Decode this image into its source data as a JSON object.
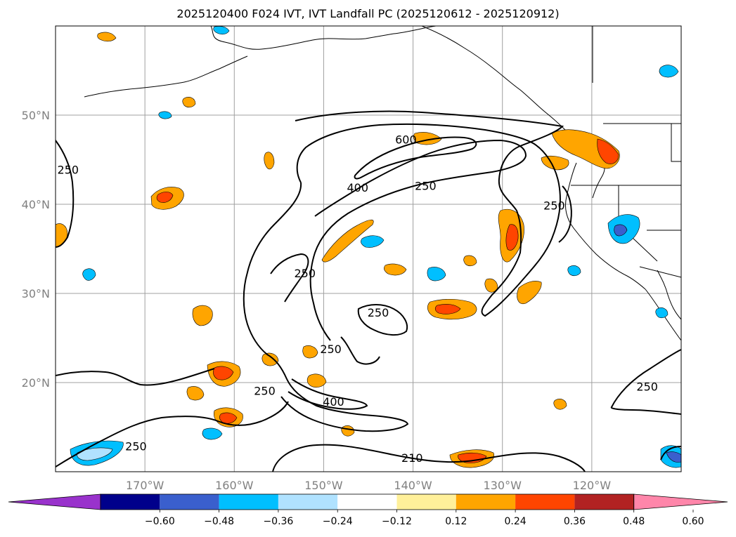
{
  "title": "2025120400 F024 IVT, IVT Landfall PC (2025120612 - 2025120912)",
  "map": {
    "extent": {
      "lon_min": -180,
      "lon_max": -110,
      "lat_min": 10,
      "lat_max": 60
    },
    "lat_ticks": [
      {
        "lat": 50,
        "label": "50°N"
      },
      {
        "lat": 40,
        "label": "40°N"
      },
      {
        "lat": 30,
        "label": "30°N"
      },
      {
        "lat": 20,
        "label": "20°N"
      }
    ],
    "lon_ticks": [
      {
        "lon": -170,
        "label": "170°W"
      },
      {
        "lon": -160,
        "label": "160°W"
      },
      {
        "lon": -150,
        "label": "150°W"
      },
      {
        "lon": -140,
        "label": "140°W"
      },
      {
        "lon": -130,
        "label": "130°W"
      },
      {
        "lon": -120,
        "label": "120°W"
      }
    ],
    "contour_labels": [
      {
        "text": "250",
        "lon": -178.6,
        "lat": 43.8
      },
      {
        "text": "600",
        "lon": -140.8,
        "lat": 47.2
      },
      {
        "text": "400",
        "lon": -146.2,
        "lat": 41.8
      },
      {
        "text": "250",
        "lon": -138.6,
        "lat": 42.0
      },
      {
        "text": "250",
        "lon": -124.2,
        "lat": 39.8
      },
      {
        "text": "250",
        "lon": -152.1,
        "lat": 32.2
      },
      {
        "text": "250",
        "lon": -143.9,
        "lat": 27.8
      },
      {
        "text": "250",
        "lon": -149.2,
        "lat": 23.7
      },
      {
        "text": "250",
        "lon": -156.6,
        "lat": 19.0
      },
      {
        "text": "400",
        "lon": -148.9,
        "lat": 17.8
      },
      {
        "text": "250",
        "lon": -171.0,
        "lat": 12.8
      },
      {
        "text": "210",
        "lon": -140.1,
        "lat": 11.5
      },
      {
        "text": "250",
        "lon": -113.8,
        "lat": 19.5
      }
    ]
  },
  "colorbar": {
    "colors": [
      "#9932cc",
      "#00008b",
      "#3a5fcd",
      "#00bfff",
      "#b0e2ff",
      "#ffffff",
      "#fff09a",
      "#ffa500",
      "#ff4500",
      "#b22222",
      "#ff86aa"
    ],
    "tick_labels": [
      "−0.60",
      "−0.48",
      "−0.36",
      "−0.24",
      "−0.12",
      "0.12",
      "0.24",
      "0.36",
      "0.48",
      "0.60"
    ]
  }
}
